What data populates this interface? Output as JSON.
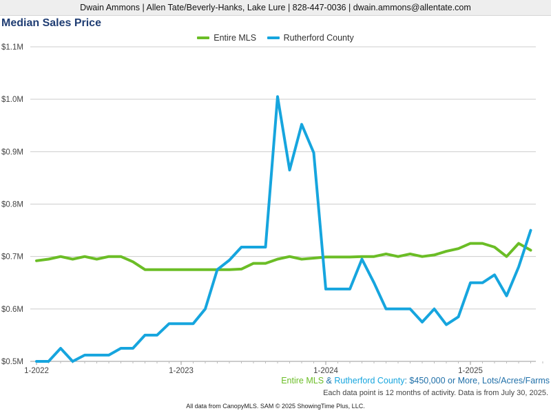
{
  "header": {
    "contact": "Dwain Ammons | Allen Tate/Beverly-Hanks, Lake Lure | 828-447-0036 | dwain.ammons@allentate.com"
  },
  "colors": {
    "entire_mls": "#6bbd26",
    "rutherford": "#16a5de",
    "title": "#1f3d73",
    "grid": "#cccccc"
  },
  "subtitle": {
    "part1": "Entire MLS",
    "amp": " & ",
    "part2": "Rutherford County",
    "rest": ": $450,000 or More, Lots/Acres/Farms"
  },
  "note": "Each data point is 12 months of activity. Data is from July 30, 2025.",
  "footer": "All data from CanopyMLS. SAM © 2025 ShowingTime Plus, LLC.",
  "chart_data": {
    "type": "line",
    "title": "Median Sales Price",
    "xlabel": "",
    "ylabel": "",
    "x_tick_labels": [
      "1-2022",
      "1-2023",
      "1-2024",
      "1-2025"
    ],
    "y_tick_labels": [
      "$0.5M",
      "$0.6M",
      "$0.7M",
      "$0.8M",
      "$0.9M",
      "$1.0M",
      "$1.1M"
    ],
    "ylim": [
      0.5,
      1.1
    ],
    "grid": true,
    "legend_position": "top-center",
    "x": [
      "2022-01",
      "2022-02",
      "2022-03",
      "2022-04",
      "2022-05",
      "2022-06",
      "2022-07",
      "2022-08",
      "2022-09",
      "2022-10",
      "2022-11",
      "2022-12",
      "2023-01",
      "2023-02",
      "2023-03",
      "2023-04",
      "2023-05",
      "2023-06",
      "2023-07",
      "2023-08",
      "2023-09",
      "2023-10",
      "2023-11",
      "2023-12",
      "2024-01",
      "2024-02",
      "2024-03",
      "2024-04",
      "2024-05",
      "2024-06",
      "2024-07",
      "2024-08",
      "2024-09",
      "2024-10",
      "2024-11",
      "2024-12",
      "2025-01",
      "2025-02",
      "2025-03",
      "2025-04",
      "2025-05",
      "2025-06",
      "2025-07"
    ],
    "series": [
      {
        "name": "Entire MLS",
        "color": "#6bbd26",
        "values": [
          0.692,
          0.695,
          0.7,
          0.695,
          0.7,
          0.695,
          0.7,
          0.7,
          0.69,
          0.675,
          0.675,
          0.675,
          0.675,
          0.675,
          0.675,
          0.675,
          0.675,
          0.676,
          0.687,
          0.687,
          0.695,
          0.7,
          0.695,
          0.697,
          0.699,
          0.699,
          0.699,
          0.7,
          0.7,
          0.705,
          0.7,
          0.705,
          0.7,
          0.703,
          0.71,
          0.715,
          0.725,
          0.725,
          0.718,
          0.7,
          0.725,
          0.712,
          null
        ]
      },
      {
        "name": "Rutherford County",
        "color": "#16a5de",
        "values": [
          0.5,
          0.5,
          0.525,
          0.5,
          0.512,
          0.512,
          0.512,
          0.525,
          0.525,
          0.55,
          0.55,
          0.572,
          0.572,
          0.572,
          0.6,
          0.675,
          0.693,
          0.718,
          0.718,
          0.718,
          1.005,
          0.865,
          0.952,
          0.898,
          0.638,
          0.638,
          0.638,
          0.695,
          0.65,
          0.6,
          0.6,
          0.6,
          0.575,
          0.6,
          0.57,
          0.585,
          0.65,
          0.65,
          0.665,
          0.625,
          0.68,
          0.75,
          null
        ]
      }
    ]
  }
}
